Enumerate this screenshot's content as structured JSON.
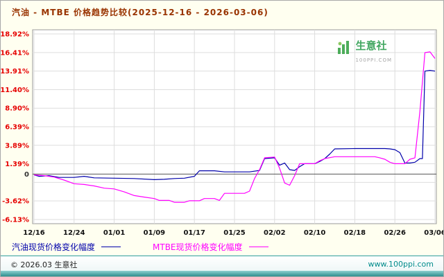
{
  "header": {
    "title": "汽油 - MTBE 价格趋势比较(2025-12-16 - 2026-03-06)"
  },
  "watermark": {
    "brand": "生意社",
    "site": "100PPI.COM"
  },
  "legend": {
    "items": [
      {
        "label": "汽油现货价格变化幅度",
        "color": "#0000aa"
      },
      {
        "label": "MTBE现货价格变化幅度",
        "color": "#ff00ff"
      }
    ]
  },
  "footer": {
    "copyright": "© 2026.03 生意社",
    "site": "www.100ppi.com"
  },
  "colors": {
    "title": "#993300",
    "axis_label": "#e60000",
    "zero_label": "#333333",
    "grid": "#dddddd",
    "plot_border": "#999999",
    "footer_teal": "#2f9e9e"
  },
  "chart_data": {
    "type": "line",
    "title": "汽油 - MTBE 价格趋势比较(2025-12-16 - 2026-03-06)",
    "xlabel": "",
    "ylabel": "",
    "grid": true,
    "legend_position": "bottom",
    "xlim": [
      0,
      80
    ],
    "ylim": [
      -6.13,
      18.92
    ],
    "x_tick_days": [
      0,
      8,
      16,
      24,
      32,
      40,
      48,
      56,
      64,
      72,
      80
    ],
    "x_tick_labels": [
      "12/16",
      "12/24",
      "01/01",
      "01/09",
      "01/17",
      "01/25",
      "02/02",
      "02/10",
      "02/18",
      "02/26",
      "03/06"
    ],
    "y_ticks": [
      {
        "value": 18.92,
        "label": "18.92%"
      },
      {
        "value": 16.41,
        "label": "16.41%"
      },
      {
        "value": 13.91,
        "label": "13.91%"
      },
      {
        "value": 11.4,
        "label": "11.40%"
      },
      {
        "value": 8.9,
        "label": "8.90%"
      },
      {
        "value": 6.39,
        "label": "6.39%"
      },
      {
        "value": 3.89,
        "label": "3.89%"
      },
      {
        "value": 1.39,
        "label": "1.39%"
      },
      {
        "value": 0,
        "label": "0"
      },
      {
        "value": -3.62,
        "label": "-3.62%"
      },
      {
        "value": -6.13,
        "label": "-6.13%"
      }
    ],
    "grid_y_values": [
      18.92,
      16.41,
      13.91,
      11.4,
      8.9,
      6.39,
      3.89,
      1.39,
      -1.12,
      -3.62,
      -6.13
    ],
    "series": [
      {
        "name": "汽油现货价格变化幅度",
        "color": "#0000aa",
        "points": [
          [
            0,
            -0.1
          ],
          [
            1,
            -0.3
          ],
          [
            3,
            -0.2
          ],
          [
            5,
            -0.45
          ],
          [
            8,
            -0.45
          ],
          [
            10,
            -0.3
          ],
          [
            12,
            -0.5
          ],
          [
            16,
            -0.55
          ],
          [
            20,
            -0.6
          ],
          [
            24,
            -0.75
          ],
          [
            26,
            -0.7
          ],
          [
            28,
            -0.6
          ],
          [
            30,
            -0.55
          ],
          [
            32,
            -0.3
          ],
          [
            33,
            0.45
          ],
          [
            36,
            0.45
          ],
          [
            38,
            0.3
          ],
          [
            43,
            0.3
          ],
          [
            45,
            0.5
          ],
          [
            46,
            2.1
          ],
          [
            48,
            2.2
          ],
          [
            49,
            1.2
          ],
          [
            50,
            1.5
          ],
          [
            51,
            0.6
          ],
          [
            52,
            0.5
          ],
          [
            53,
            1.0
          ],
          [
            54,
            1.4
          ],
          [
            56,
            1.4
          ],
          [
            57,
            1.7
          ],
          [
            58,
            2.1
          ],
          [
            59,
            2.7
          ],
          [
            60,
            3.4
          ],
          [
            64,
            3.45
          ],
          [
            70,
            3.45
          ],
          [
            71,
            3.4
          ],
          [
            72,
            3.3
          ],
          [
            73,
            2.9
          ],
          [
            74,
            1.5
          ],
          [
            75,
            1.5
          ],
          [
            76,
            1.6
          ],
          [
            77,
            2.1
          ],
          [
            77.5,
            2.1
          ],
          [
            78,
            13.9
          ],
          [
            79,
            14.0
          ],
          [
            80,
            13.9
          ]
        ]
      },
      {
        "name": "MTBE现货价格变化幅度",
        "color": "#ff00ff",
        "points": [
          [
            0,
            -0.1
          ],
          [
            2,
            -0.2
          ],
          [
            4,
            -0.4
          ],
          [
            6,
            -0.8
          ],
          [
            8,
            -1.3
          ],
          [
            10,
            -1.4
          ],
          [
            12,
            -1.6
          ],
          [
            14,
            -1.9
          ],
          [
            16,
            -2.0
          ],
          [
            18,
            -2.4
          ],
          [
            20,
            -2.9
          ],
          [
            22,
            -3.1
          ],
          [
            24,
            -3.3
          ],
          [
            25,
            -3.55
          ],
          [
            27,
            -3.55
          ],
          [
            28,
            -3.8
          ],
          [
            30,
            -3.8
          ],
          [
            31,
            -3.6
          ],
          [
            33,
            -3.6
          ],
          [
            34,
            -3.3
          ],
          [
            36,
            -3.3
          ],
          [
            37,
            -3.55
          ],
          [
            38,
            -2.6
          ],
          [
            42,
            -2.6
          ],
          [
            43,
            -2.3
          ],
          [
            44,
            -0.6
          ],
          [
            45,
            0.6
          ],
          [
            46,
            2.2
          ],
          [
            48,
            2.3
          ],
          [
            49,
            0.8
          ],
          [
            50,
            -1.2
          ],
          [
            51,
            -1.5
          ],
          [
            52,
            -0.2
          ],
          [
            53,
            1.4
          ],
          [
            56,
            1.4
          ],
          [
            57,
            1.8
          ],
          [
            58,
            2.1
          ],
          [
            60,
            2.35
          ],
          [
            68,
            2.35
          ],
          [
            69,
            2.2
          ],
          [
            70,
            2.0
          ],
          [
            71,
            1.6
          ],
          [
            72,
            1.4
          ],
          [
            74,
            1.4
          ],
          [
            75,
            2.0
          ],
          [
            76,
            2.2
          ],
          [
            77,
            8.5
          ],
          [
            78,
            16.4
          ],
          [
            79,
            16.5
          ],
          [
            80,
            15.6
          ]
        ]
      }
    ]
  }
}
